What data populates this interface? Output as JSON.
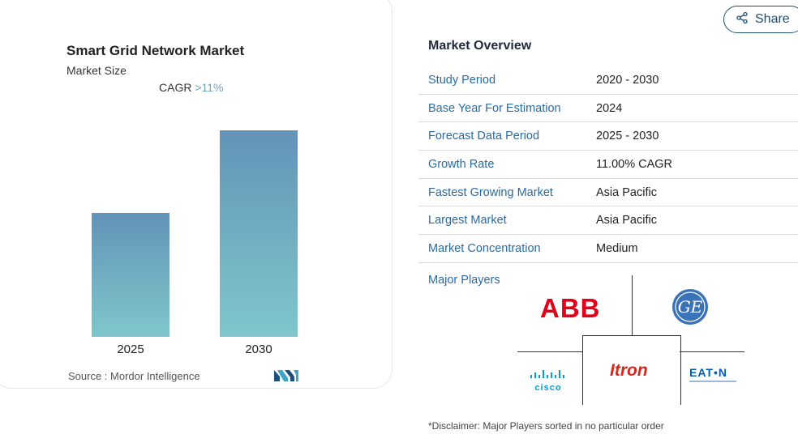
{
  "chart_data": {
    "type": "bar",
    "title": "Smart Grid Network Market",
    "subtitle": "Market Size",
    "cagr_label": "CAGR",
    "cagr_value": ">11%",
    "categories": [
      "2025",
      "2030"
    ],
    "values": [
      0.6,
      1.0
    ],
    "xlabel": "",
    "ylabel": "",
    "grid": false,
    "legend": "none",
    "colors": {
      "bar_top": "#6393b7",
      "bar_bottom": "#7fc7cc"
    },
    "source": "Source :  Mordor Intelligence"
  },
  "share": {
    "label": "Share",
    "icon": "share-icon"
  },
  "overview": {
    "title": "Market Overview",
    "rows": [
      {
        "label": "Study Period",
        "value": "2020 - 2030"
      },
      {
        "label": "Base Year For Estimation",
        "value": "2024"
      },
      {
        "label": "Forecast Data Period",
        "value": "2025 - 2030"
      },
      {
        "label": "Growth Rate",
        "value": "11.00% CAGR"
      },
      {
        "label": "Fastest Growing Market",
        "value": "Asia Pacific"
      },
      {
        "label": "Largest Market",
        "value": "Asia Pacific"
      },
      {
        "label": "Market Concentration",
        "value": "Medium"
      }
    ],
    "players_label": "Major Players",
    "players": [
      {
        "name": "ABB",
        "color": "#e2001a"
      },
      {
        "name": "GE",
        "color": "#3b73b9"
      },
      {
        "name": "cisco",
        "color": "#049fd9"
      },
      {
        "name": "Itron",
        "color": "#d7261e"
      },
      {
        "name": "EAT•N",
        "color": "#005eb8"
      }
    ],
    "disclaimer": "*Disclaimer: Major Players sorted in no particular order"
  }
}
